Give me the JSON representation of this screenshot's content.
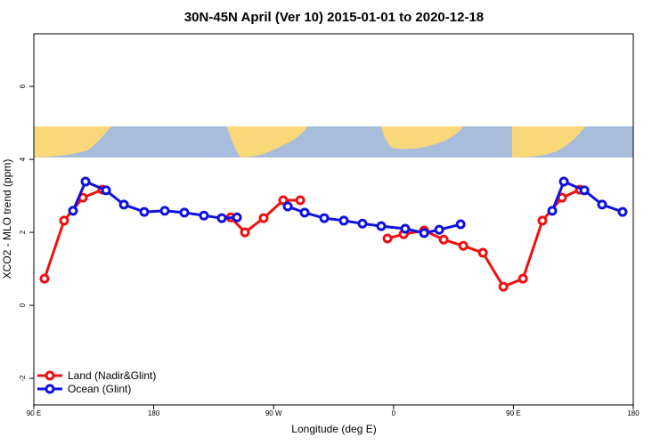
{
  "chart_data": {
    "type": "line",
    "title": "30N-45N April (Ver 10)   2015-01-01 to 2020-12-18",
    "x_label": "Longitude (deg E)",
    "y_label": "XCO2 - MLO trend (ppm)",
    "xlim": [
      90,
      540
    ],
    "ylim": [
      -2.73,
      7.44
    ],
    "xticks": [
      {
        "value": 90,
        "label": "90 E"
      },
      180,
      {
        "value": 270,
        "label": "90 W"
      },
      {
        "value": 360,
        "label": "0"
      },
      {
        "value": 450,
        "label": "90 E"
      },
      180
    ],
    "yticks": [
      -2,
      0,
      2,
      4,
      6
    ],
    "legend": "bottom-left",
    "series": [
      {
        "name": "Land (Nadir&Glint)",
        "color": "#ee1111",
        "x": [
          98.0,
          112.7,
          126.8,
          141.5,
          null,
          237.8,
          248.5,
          262.5,
          277.2,
          290.0,
          null,
          355.5,
          367.6,
          383.0,
          397.7,
          412.4,
          427.1,
          442.5,
          457.2,
          471.8,
          486.5,
          499.9
        ],
        "values": [
          0.73,
          2.32,
          2.95,
          3.17,
          null,
          2.41,
          2.0,
          2.39,
          2.88,
          2.88,
          null,
          1.83,
          1.95,
          2.05,
          1.8,
          1.63,
          1.44,
          0.51,
          0.73,
          2.32,
          2.95,
          3.17
        ]
      },
      {
        "name": "Ocean (Glint)",
        "color": "#1111dd",
        "x": [
          119.4,
          128.8,
          144.2,
          157.6,
          172.9,
          188.3,
          203.0,
          217.7,
          231.1,
          242.5,
          null,
          280.6,
          293.3,
          308.0,
          322.7,
          336.7,
          350.8,
          368.8,
          383.0,
          394.3,
          410.4,
          null,
          479.2,
          487.9,
          503.3,
          516.6,
          532.0
        ],
        "values": [
          2.59,
          3.39,
          3.15,
          2.76,
          2.56,
          2.59,
          2.54,
          2.46,
          2.39,
          2.41,
          null,
          2.71,
          2.54,
          2.39,
          2.32,
          2.24,
          2.17,
          2.1,
          1.98,
          2.07,
          2.22,
          null,
          2.59,
          3.39,
          3.15,
          2.76,
          2.56
        ]
      }
    ]
  }
}
